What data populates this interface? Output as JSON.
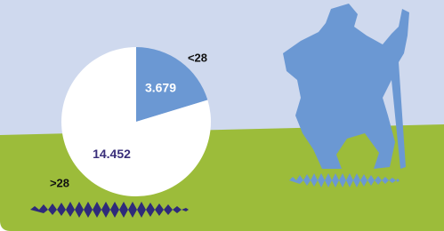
{
  "chart_data": {
    "type": "pie",
    "categories": [
      "<28",
      ">28"
    ],
    "values": [
      3679,
      14452
    ],
    "value_labels": [
      "3.679",
      "14.452"
    ],
    "colors": [
      "#6b98d3",
      "#ffffff"
    ],
    "value_label_colors": [
      "#ffffff",
      "#3a2f7a"
    ]
  }
}
